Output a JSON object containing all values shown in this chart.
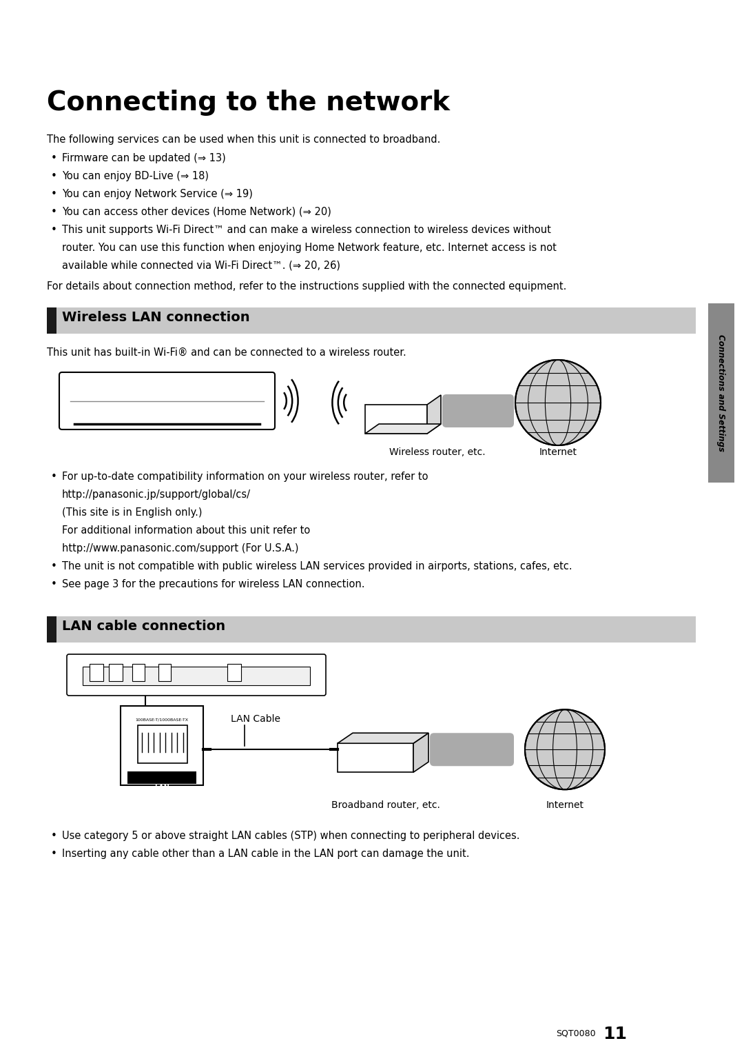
{
  "title": "Connecting to the network",
  "bg_color": "#ffffff",
  "intro_text": "The following services can be used when this unit is connected to broadband.",
  "bullet_points_intro": [
    "Firmware can be updated (⇒ 13)",
    "You can enjoy BD-Live (⇒ 18)",
    "You can enjoy Network Service (⇒ 19)",
    "You can access other devices (Home Network) (⇒ 20)",
    "This unit supports Wi-Fi Direct™ and can make a wireless connection to wireless devices without"
  ],
  "bullet5_line2": "router. You can use this function when enjoying Home Network feature, etc. Internet access is not",
  "bullet5_line3": "available while connected via Wi-Fi Direct™. (⇒ 20, 26)",
  "footer_text": "For details about connection method, refer to the instructions supplied with the connected equipment.",
  "section1_title": "Wireless LAN connection",
  "section1_intro": "This unit has built-in Wi-Fi® and can be connected to a wireless router.",
  "wireless_label1": "Wireless router, etc.",
  "wireless_label2": "Internet",
  "section1_bullet1_l1": "For up-to-date compatibility information on your wireless router, refer to",
  "section1_bullet1_l2": "http://panasonic.jp/support/global/cs/",
  "section1_bullet1_l3": "(This site is in English only.)",
  "section1_bullet1_l4": "For additional information about this unit refer to",
  "section1_bullet1_l5": "http://www.panasonic.com/support (For U.S.A.)",
  "section1_bullet2": "The unit is not compatible with public wireless LAN services provided in airports, stations, cafes, etc.",
  "section1_bullet3": "See page 3 for the precautions for wireless LAN connection.",
  "section2_title": "LAN cable connection",
  "lan_cable_label": "LAN Cable",
  "lan_label1": "Broadband router, etc.",
  "lan_label2": "Internet",
  "section2_bullet1": "Use category 5 or above straight LAN cables (STP) when connecting to peripheral devices.",
  "section2_bullet2": "Inserting any cable other than a LAN cable in the LAN port can damage the unit.",
  "sidebar_text": "Connections and Settings",
  "page_num": "11",
  "page_code": "SQT0080",
  "header_bar_color": "#c8c8c8",
  "header_bar_dark": "#1a1a1a",
  "sidebar_color": "#888888"
}
